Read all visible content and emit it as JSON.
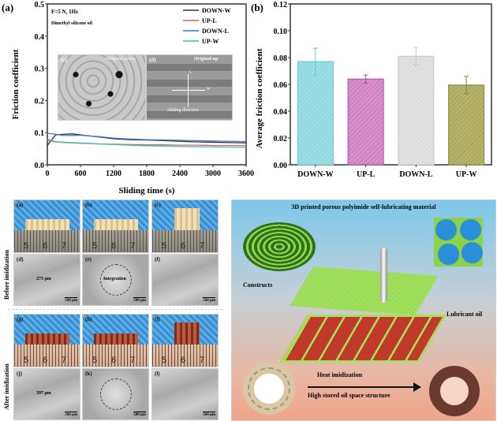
{
  "chart_data": [
    {
      "type": "line",
      "panel_label": "(a)",
      "xlabel": "Sliding time (s)",
      "ylabel": "Friction coefficient",
      "xlim": [
        0,
        3600
      ],
      "ylim": [
        0,
        0.5
      ],
      "xticks": [
        0,
        600,
        1200,
        1800,
        2400,
        3000,
        3600
      ],
      "yticks": [
        "0.0",
        "0.1",
        "0.2",
        "0.3",
        "0.4",
        "0.5"
      ],
      "annotations": [
        "F=5 N, 1Hz",
        "Dimethyl silicone oil"
      ],
      "legend_position": "top-right",
      "x": [
        0,
        150,
        300,
        450,
        600,
        900,
        1200,
        1500,
        1800,
        2100,
        2400,
        2700,
        3000,
        3300,
        3600
      ],
      "series": [
        {
          "name": "DOWN-W",
          "color": "#333333",
          "values": [
            0.06,
            0.093,
            0.095,
            0.096,
            0.093,
            0.087,
            0.081,
            0.078,
            0.077,
            0.075,
            0.073,
            0.071,
            0.07,
            0.069,
            0.068
          ]
        },
        {
          "name": "UP-L",
          "color": "#f06060",
          "values": [
            0.075,
            0.071,
            0.069,
            0.068,
            0.067,
            0.065,
            0.064,
            0.063,
            0.062,
            0.062,
            0.061,
            0.061,
            0.06,
            0.06,
            0.06
          ]
        },
        {
          "name": "DOWN-L",
          "color": "#3a78d0",
          "values": [
            0.098,
            0.095,
            0.091,
            0.091,
            0.092,
            0.088,
            0.083,
            0.08,
            0.078,
            0.077,
            0.076,
            0.075,
            0.074,
            0.073,
            0.072
          ]
        },
        {
          "name": "UP-W",
          "color": "#30c0c0",
          "values": [
            0.08,
            0.072,
            0.07,
            0.069,
            0.068,
            0.065,
            0.063,
            0.061,
            0.059,
            0.058,
            0.057,
            0.056,
            0.056,
            0.055,
            0.055
          ]
        }
      ],
      "insets": [
        {
          "label": "(c)",
          "title": "Original-down"
        },
        {
          "label": "(d)",
          "title": "Original-up",
          "arrows": [
            "L",
            "W"
          ],
          "caption": "Sliding direction"
        }
      ]
    },
    {
      "type": "bar",
      "panel_label": "(b)",
      "ylabel": "Average friction coefficient",
      "ylim": [
        0,
        0.12
      ],
      "yticks": [
        "0.00",
        "0.02",
        "0.04",
        "0.06",
        "0.08",
        "0.10",
        "0.12"
      ],
      "categories": [
        "DOWN-W",
        "UP-L",
        "DOWN-L",
        "UP-W"
      ],
      "values": [
        0.077,
        0.064,
        0.081,
        0.0595
      ],
      "errors": [
        0.01,
        0.003,
        0.0065,
        0.0065
      ],
      "colors": [
        "#9fdde6",
        "#d890cc",
        "#e2e2e2",
        "#b5b26a"
      ],
      "edge_colors": [
        "#5cc8d8",
        "#b04aa0",
        "#c8c8c8",
        "#85843a"
      ]
    }
  ],
  "photos": {
    "row_labels": [
      "Before imidization",
      "After imidization"
    ],
    "panels": [
      {
        "label": "(a)",
        "ruler": [
          "5",
          "6",
          "7"
        ]
      },
      {
        "label": "(b)",
        "ruler": [
          "5",
          "6",
          "7"
        ]
      },
      {
        "label": "(c)",
        "ruler": [
          "5",
          "6",
          "7"
        ]
      },
      {
        "label": "(d)",
        "note": "275 μm",
        "scale": "500 μm"
      },
      {
        "label": "(e)",
        "note": "Integration",
        "scale": "500 μm"
      },
      {
        "label": "(f)",
        "scale": "500 μm"
      },
      {
        "label": "(g)",
        "ruler": [
          "5",
          "6",
          "7"
        ]
      },
      {
        "label": "(h)",
        "ruler": [
          "5",
          "6",
          "7"
        ]
      },
      {
        "label": "(i)",
        "ruler": [
          "5",
          "6",
          "7"
        ]
      },
      {
        "label": "(j)",
        "note": "397 μm",
        "scale": "500 μm"
      },
      {
        "label": "(k)",
        "scale": "500 μm"
      },
      {
        "label": "(l)",
        "scale": "500 μm"
      }
    ]
  },
  "schematic": {
    "title": "3D printed porous polyimide self-lubricating material",
    "constructs": "Constructs",
    "lubricant": "Lubricant oil",
    "process": "Heat imidization",
    "result": "High stored oil space structure"
  }
}
